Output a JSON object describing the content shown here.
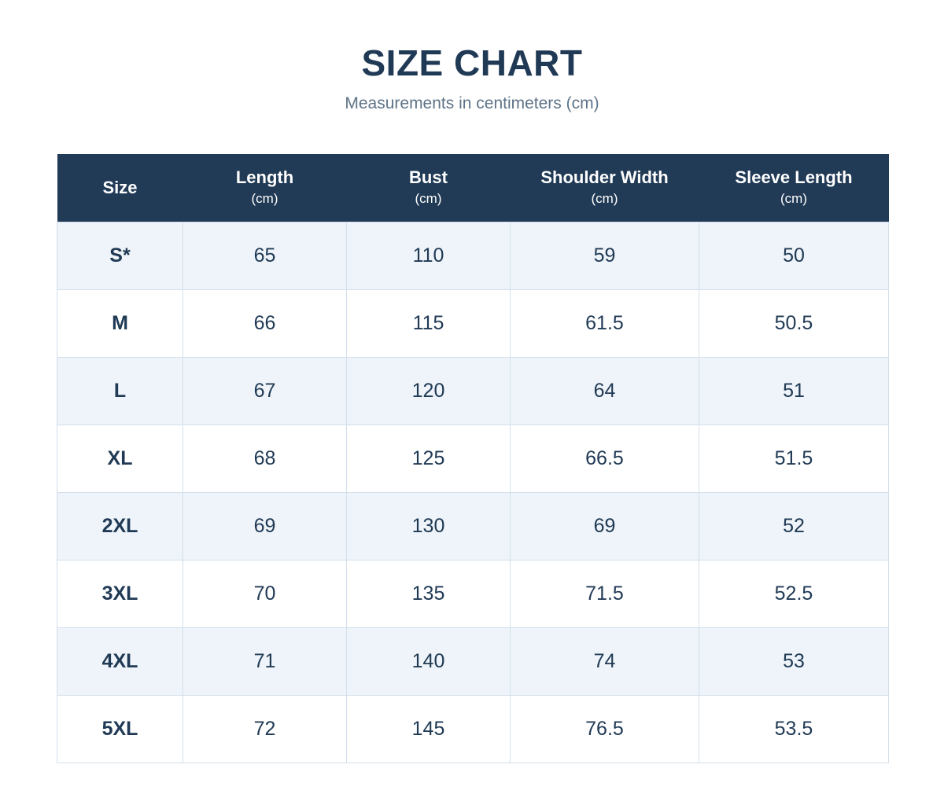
{
  "title": "SIZE CHART",
  "subtitle": "Measurements in centimeters (cm)",
  "colors": {
    "header_bg": "#213a56",
    "header_text": "#ffffff",
    "row_alt_bg": "#eef4f9",
    "row_bg": "#ffffff",
    "text": "#203a55",
    "border": "#d3e0ec"
  },
  "chart_data": {
    "type": "table",
    "title": "SIZE CHART",
    "subtitle": "Measurements in centimeters (cm)",
    "columns": [
      {
        "name": "Size",
        "unit": ""
      },
      {
        "name": "Length",
        "unit": "(cm)"
      },
      {
        "name": "Bust",
        "unit": "(cm)"
      },
      {
        "name": "Shoulder Width",
        "unit": "(cm)"
      },
      {
        "name": "Sleeve Length",
        "unit": "(cm)"
      }
    ],
    "rows": [
      [
        "S*",
        "65",
        "110",
        "59",
        "50"
      ],
      [
        "M",
        "66",
        "115",
        "61.5",
        "50.5"
      ],
      [
        "L",
        "67",
        "120",
        "64",
        "51"
      ],
      [
        "XL",
        "68",
        "125",
        "66.5",
        "51.5"
      ],
      [
        "2XL",
        "69",
        "130",
        "69",
        "52"
      ],
      [
        "3XL",
        "70",
        "135",
        "71.5",
        "52.5"
      ],
      [
        "4XL",
        "71",
        "140",
        "74",
        "53"
      ],
      [
        "5XL",
        "72",
        "145",
        "76.5",
        "53.5"
      ]
    ]
  }
}
